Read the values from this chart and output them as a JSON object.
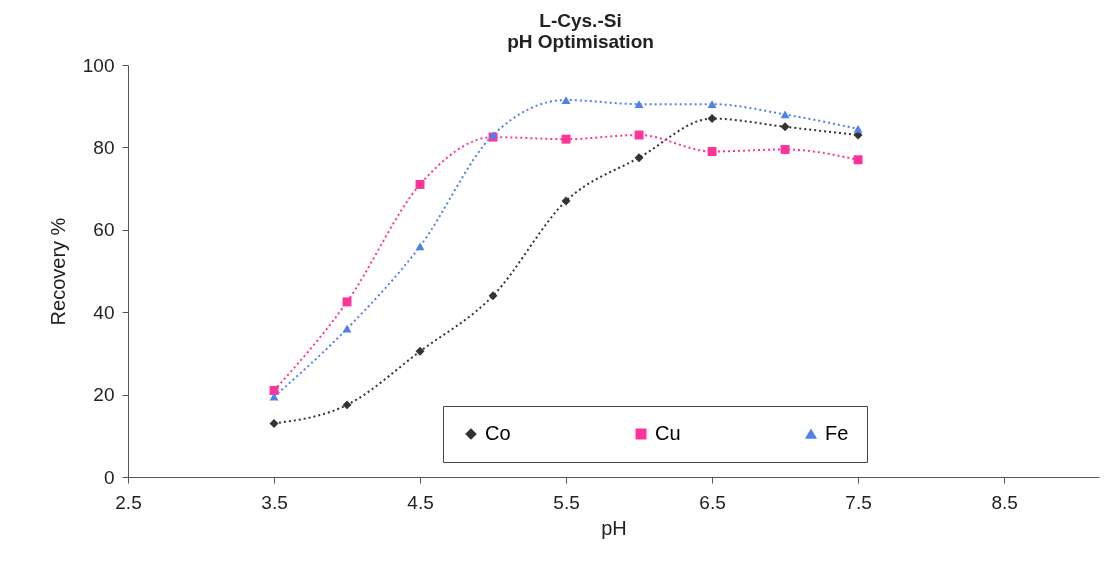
{
  "chart_data": {
    "type": "line",
    "title": "L-Cys.-Si\npH Optimisation",
    "xlabel": "pH",
    "ylabel": "Recovery %",
    "x": [
      3.5,
      4,
      4.5,
      5,
      5.5,
      6,
      6.5,
      7,
      7.5
    ],
    "series": [
      {
        "name": "Co",
        "color": "#333333",
        "marker": "diamond",
        "values": [
          13,
          17.5,
          30.5,
          44,
          67,
          77.5,
          87,
          85,
          83
        ]
      },
      {
        "name": "Cu",
        "color": "#ff3399",
        "marker": "square",
        "values": [
          21,
          42.5,
          71,
          82.5,
          82,
          83,
          79,
          79.5,
          77
        ]
      },
      {
        "name": "Fe",
        "color": "#4f82e8",
        "marker": "triangle",
        "values": [
          19.5,
          36,
          56,
          83,
          91.5,
          90.5,
          90.5,
          88,
          84.5
        ]
      }
    ],
    "xlim": [
      2.5,
      9.15
    ],
    "xticks": [
      2.5,
      3.5,
      4.5,
      5.5,
      6.5,
      7.5,
      8.5
    ],
    "ylim": [
      0,
      100
    ],
    "yticks": [
      0,
      20,
      40,
      60,
      80,
      100
    ],
    "grid": false,
    "legend": "bottom right",
    "line_style": "dotted"
  }
}
